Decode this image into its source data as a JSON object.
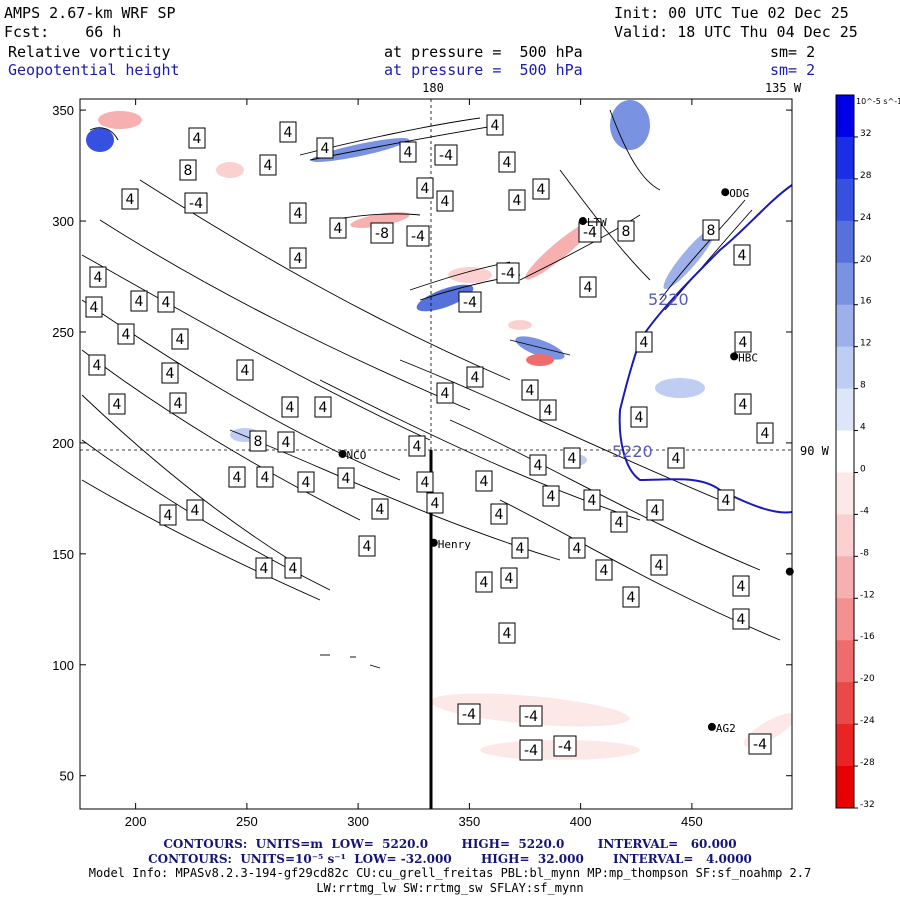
{
  "header": {
    "model": "AMPS 2.67-km WRF SP",
    "init": "Init: 00 UTC Tue 02 Dec 25",
    "fcst_label": "Fcst:",
    "fcst_value": "66 h",
    "valid": "Valid: 18 UTC Thu 04 Dec 25",
    "field1": "Relative vorticity",
    "field2": "Geopotential height",
    "level1": "at pressure =  500 hPa",
    "level2": "at pressure =  500 hPa",
    "sm1": "sm= 2",
    "sm2": "sm= 2"
  },
  "map": {
    "meridian_labels": [
      "180",
      "135 W",
      "90 W"
    ],
    "stations": [
      {
        "name": "ODG",
        "x": 465,
        "y": 313
      },
      {
        "name": "LTW",
        "x": 401,
        "y": 300
      },
      {
        "name": "HBC",
        "x": 469,
        "y": 239
      },
      {
        "name": "NCO",
        "x": 293,
        "y": 195
      },
      {
        "name": "Henry",
        "x": 334,
        "y": 155
      },
      {
        "name": "AG2",
        "x": 459,
        "y": 72
      },
      {
        "name": "",
        "x": 494,
        "y": 142
      }
    ],
    "height_label": "5220",
    "contour_labels": [
      "4",
      "-4",
      "8",
      "-8"
    ]
  },
  "chart_data": {
    "type": "heatmap",
    "xlim": [
      175,
      495
    ],
    "ylim": [
      35,
      355
    ],
    "x_ticks": [
      200,
      250,
      300,
      350,
      400,
      450
    ],
    "y_ticks": [
      50,
      100,
      150,
      200,
      250,
      300,
      350
    ],
    "colorbar": {
      "unit": "10^-5 s^-1",
      "ticks": [
        32,
        28,
        24,
        20,
        16,
        12,
        8,
        4,
        0,
        -4,
        -8,
        -12,
        -16,
        -20,
        -24,
        -28,
        -32
      ],
      "colors": [
        "#0000e6",
        "#1a2ee6",
        "#3650e0",
        "#5670dc",
        "#7a92e2",
        "#9db0ea",
        "#bfcdf2",
        "#dde5f8",
        "#ffffff",
        "#fde8e8",
        "#fbd0d0",
        "#f7b0b0",
        "#f39090",
        "#ef6c6c",
        "#eb4848",
        "#e82424",
        "#e60000"
      ]
    }
  },
  "footer": {
    "line1": "CONTOURS:  UNITS=m  LOW=  5220.0        HIGH=  5220.0        INTERVAL=   60.000",
    "line2": "CONTOURS:  UNITS=10⁻⁵ s⁻¹  LOW= -32.000       HIGH=  32.000       INTERVAL=   4.0000",
    "line3": "Model Info: MPASv8.2.3-194-gf29cd82c CU:cu_grell_freitas PBL:bl_mynn MP:mp_thompson SF:sf_noahmp 2.7",
    "line4": "LW:rrtmg_lw SW:rrtmg_sw SFLAY:sf_mynn"
  }
}
